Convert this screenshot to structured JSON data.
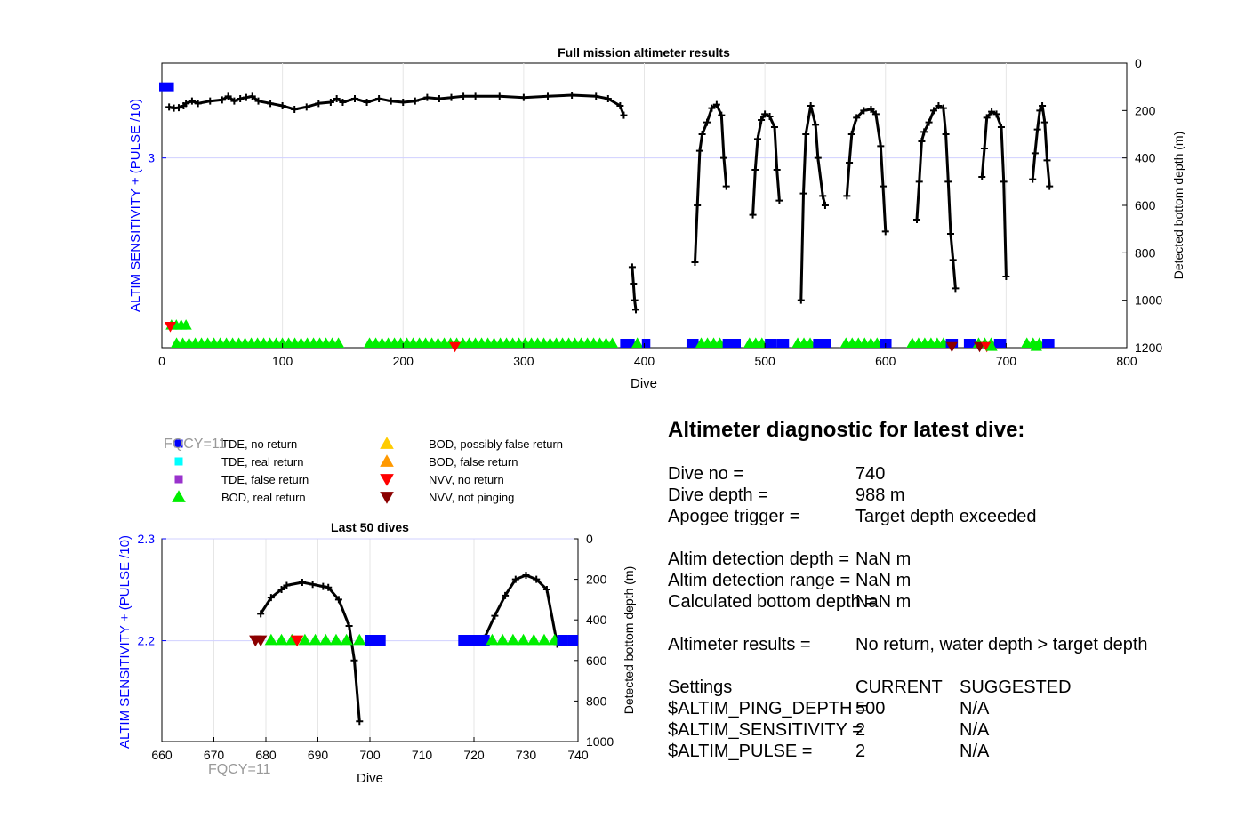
{
  "chart_data": [
    {
      "id": "full",
      "type": "line",
      "title": "Full mission altimeter results",
      "xlabel": "Dive",
      "ylabel_left": "ALTIM SENSITIVITY + (PULSE /10)",
      "ylabel_right": "Detected bottom depth (m)",
      "xlim": [
        0,
        800
      ],
      "xticks": [
        0,
        100,
        200,
        300,
        400,
        500,
        600,
        700,
        800
      ],
      "ylim_right": [
        1200,
        0
      ],
      "yticks_right": [
        0,
        200,
        400,
        600,
        800,
        1000,
        1200
      ],
      "yticks_left": [
        {
          "label": "3",
          "depth": 400
        }
      ],
      "grid": true,
      "settings_series": [
        {
          "name": "TDE, no return",
          "color": "#0000ff",
          "x_from": 0,
          "x_to": 10,
          "depth": 100
        }
      ],
      "event_bands": [
        {
          "from": 10,
          "to": 150,
          "color": "#00ee00"
        },
        {
          "from": 170,
          "to": 380,
          "color": "#00ee00"
        },
        {
          "from": 380,
          "to": 392,
          "color": "#0000ff"
        },
        {
          "from": 392,
          "to": 398,
          "color": "#00ee00"
        },
        {
          "from": 398,
          "to": 405,
          "color": "#0000ff"
        },
        {
          "from": 435,
          "to": 445,
          "color": "#0000ff"
        },
        {
          "from": 445,
          "to": 465,
          "color": "#00ee00"
        },
        {
          "from": 465,
          "to": 480,
          "color": "#0000ff"
        },
        {
          "from": 485,
          "to": 500,
          "color": "#00ee00"
        },
        {
          "from": 500,
          "to": 510,
          "color": "#0000ff"
        },
        {
          "from": 510,
          "to": 520,
          "color": "#0000ff"
        },
        {
          "from": 525,
          "to": 540,
          "color": "#00ee00"
        },
        {
          "from": 540,
          "to": 555,
          "color": "#0000ff"
        },
        {
          "from": 565,
          "to": 595,
          "color": "#00ee00"
        },
        {
          "from": 595,
          "to": 605,
          "color": "#0000ff"
        },
        {
          "from": 620,
          "to": 650,
          "color": "#00ee00"
        },
        {
          "from": 650,
          "to": 660,
          "color": "#0000ff"
        },
        {
          "from": 665,
          "to": 675,
          "color": "#0000ff"
        },
        {
          "from": 675,
          "to": 690,
          "color": "#00ee00"
        },
        {
          "from": 690,
          "to": 700,
          "color": "#0000ff"
        },
        {
          "from": 715,
          "to": 730,
          "color": "#00ee00"
        },
        {
          "from": 730,
          "to": 740,
          "color": "#0000ff"
        }
      ],
      "event_markers": [
        {
          "x": 8,
          "depth": 1105,
          "color": "#00ee00",
          "shape": "up"
        },
        {
          "x": 12,
          "depth": 1105,
          "color": "#00ee00",
          "shape": "up"
        },
        {
          "x": 16,
          "depth": 1105,
          "color": "#00ee00",
          "shape": "up"
        },
        {
          "x": 20,
          "depth": 1105,
          "color": "#00ee00",
          "shape": "up"
        },
        {
          "x": 7,
          "depth": 1110,
          "color": "#ff0000",
          "shape": "down"
        },
        {
          "x": 243,
          "depth": 1195,
          "color": "#ff0000",
          "shape": "down"
        },
        {
          "x": 655,
          "depth": 1195,
          "color": "#8b0000",
          "shape": "down"
        },
        {
          "x": 678,
          "depth": 1195,
          "color": "#8b0000",
          "shape": "down"
        },
        {
          "x": 684,
          "depth": 1195,
          "color": "#ff0000",
          "shape": "down"
        },
        {
          "x": 688,
          "depth": 1195,
          "color": "#00ee00",
          "shape": "up"
        },
        {
          "x": 725,
          "depth": 1195,
          "color": "#00ee00",
          "shape": "up"
        }
      ],
      "depth_series": [
        [
          [
            6,
            185
          ],
          [
            10,
            190
          ],
          [
            14,
            188
          ],
          [
            18,
            180
          ],
          [
            20,
            170
          ],
          [
            25,
            160
          ],
          [
            30,
            170
          ],
          [
            40,
            160
          ],
          [
            50,
            155
          ],
          [
            55,
            140
          ],
          [
            60,
            160
          ],
          [
            65,
            150
          ],
          [
            70,
            145
          ],
          [
            75,
            140
          ],
          [
            80,
            160
          ],
          [
            90,
            170
          ],
          [
            100,
            180
          ],
          [
            110,
            195
          ],
          [
            120,
            185
          ],
          [
            130,
            170
          ],
          [
            140,
            165
          ],
          [
            145,
            150
          ],
          [
            150,
            165
          ],
          [
            160,
            150
          ],
          [
            170,
            165
          ],
          [
            180,
            150
          ],
          [
            190,
            160
          ],
          [
            200,
            165
          ],
          [
            210,
            160
          ],
          [
            220,
            145
          ],
          [
            230,
            150
          ],
          [
            240,
            145
          ],
          [
            250,
            140
          ],
          [
            260,
            140
          ],
          [
            280,
            140
          ],
          [
            300,
            145
          ],
          [
            320,
            140
          ],
          [
            340,
            135
          ],
          [
            360,
            140
          ],
          [
            370,
            150
          ],
          [
            380,
            180
          ],
          [
            383,
            220
          ]
        ],
        [
          [
            390,
            860
          ],
          [
            391,
            930
          ],
          [
            392,
            1000
          ],
          [
            393,
            1040
          ]
        ],
        [
          [
            442,
            840
          ],
          [
            444,
            600
          ],
          [
            446,
            370
          ],
          [
            448,
            300
          ],
          [
            452,
            250
          ],
          [
            456,
            190
          ],
          [
            460,
            175
          ],
          [
            464,
            220
          ],
          [
            466,
            400
          ],
          [
            468,
            520
          ]
        ],
        [
          [
            490,
            640
          ],
          [
            492,
            450
          ],
          [
            494,
            320
          ],
          [
            497,
            240
          ],
          [
            500,
            215
          ],
          [
            504,
            225
          ],
          [
            508,
            270
          ],
          [
            510,
            450
          ],
          [
            512,
            580
          ]
        ],
        [
          [
            530,
            1000
          ],
          [
            532,
            550
          ],
          [
            534,
            300
          ],
          [
            538,
            180
          ],
          [
            542,
            260
          ],
          [
            544,
            400
          ],
          [
            548,
            560
          ],
          [
            550,
            600
          ]
        ],
        [
          [
            568,
            560
          ],
          [
            570,
            420
          ],
          [
            572,
            300
          ],
          [
            576,
            230
          ],
          [
            582,
            200
          ],
          [
            588,
            195
          ],
          [
            592,
            215
          ],
          [
            596,
            350
          ],
          [
            598,
            520
          ],
          [
            600,
            710
          ]
        ],
        [
          [
            626,
            660
          ],
          [
            628,
            500
          ],
          [
            630,
            330
          ],
          [
            632,
            290
          ],
          [
            636,
            250
          ],
          [
            640,
            200
          ],
          [
            644,
            180
          ],
          [
            648,
            190
          ],
          [
            650,
            300
          ],
          [
            652,
            500
          ],
          [
            654,
            720
          ],
          [
            656,
            830
          ],
          [
            658,
            950
          ]
        ],
        [
          [
            680,
            480
          ],
          [
            682,
            360
          ],
          [
            684,
            230
          ],
          [
            688,
            205
          ],
          [
            692,
            215
          ],
          [
            696,
            270
          ],
          [
            698,
            500
          ],
          [
            700,
            900
          ]
        ],
        [
          [
            722,
            490
          ],
          [
            724,
            380
          ],
          [
            726,
            280
          ],
          [
            728,
            200
          ],
          [
            730,
            180
          ],
          [
            732,
            250
          ],
          [
            734,
            410
          ],
          [
            736,
            520
          ]
        ]
      ]
    },
    {
      "id": "last50",
      "type": "line",
      "title": "Last 50 dives",
      "xlabel": "Dive",
      "ylabel_left": "ALTIM SENSITIVITY + (PULSE /10)",
      "ylabel_right": "Detected bottom depth (m)",
      "xlim": [
        660,
        740
      ],
      "xticks": [
        660,
        670,
        680,
        690,
        700,
        710,
        720,
        730,
        740
      ],
      "ylim_right": [
        1000,
        0
      ],
      "yticks_right": [
        0,
        200,
        400,
        600,
        800,
        1000
      ],
      "ylim_left": [
        2.101,
        2.3
      ],
      "yticks_left": [
        2.2,
        2.3
      ],
      "grid": true,
      "event_markers": [
        {
          "x": 678,
          "depth": 500,
          "color": "#8b0000",
          "shape": "down"
        },
        {
          "x": 679,
          "depth": 500,
          "color": "#8b0000",
          "shape": "down"
        },
        {
          "x": 681,
          "depth": 500,
          "color": "#00ee00",
          "shape": "up"
        },
        {
          "x": 683,
          "depth": 500,
          "color": "#00ee00",
          "shape": "up"
        },
        {
          "x": 685,
          "depth": 500,
          "color": "#00ee00",
          "shape": "up"
        },
        {
          "x": 686,
          "depth": 500,
          "color": "#ff0000",
          "shape": "down"
        },
        {
          "x": 687.5,
          "depth": 500,
          "color": "#00ee00",
          "shape": "up"
        },
        {
          "x": 689.5,
          "depth": 500,
          "color": "#00ee00",
          "shape": "up"
        },
        {
          "x": 691.5,
          "depth": 500,
          "color": "#00ee00",
          "shape": "up"
        },
        {
          "x": 693.5,
          "depth": 500,
          "color": "#00ee00",
          "shape": "up"
        },
        {
          "x": 695.5,
          "depth": 500,
          "color": "#00ee00",
          "shape": "up"
        },
        {
          "x": 698,
          "depth": 500,
          "color": "#00ee00",
          "shape": "up"
        },
        {
          "x": 700,
          "depth": 500,
          "color": "#0000ff",
          "shape": "square"
        },
        {
          "x": 701,
          "depth": 500,
          "color": "#0000ff",
          "shape": "square"
        },
        {
          "x": 702,
          "depth": 500,
          "color": "#0000ff",
          "shape": "square"
        },
        {
          "x": 718,
          "depth": 500,
          "color": "#0000ff",
          "shape": "square"
        },
        {
          "x": 719,
          "depth": 500,
          "color": "#0000ff",
          "shape": "square"
        },
        {
          "x": 720,
          "depth": 500,
          "color": "#0000ff",
          "shape": "square"
        },
        {
          "x": 721,
          "depth": 500,
          "color": "#0000ff",
          "shape": "square"
        },
        {
          "x": 722,
          "depth": 500,
          "color": "#0000ff",
          "shape": "square"
        },
        {
          "x": 723.5,
          "depth": 500,
          "color": "#00ee00",
          "shape": "up"
        },
        {
          "x": 725.5,
          "depth": 500,
          "color": "#00ee00",
          "shape": "up"
        },
        {
          "x": 727.5,
          "depth": 500,
          "color": "#00ee00",
          "shape": "up"
        },
        {
          "x": 729.5,
          "depth": 500,
          "color": "#00ee00",
          "shape": "up"
        },
        {
          "x": 731.5,
          "depth": 500,
          "color": "#00ee00",
          "shape": "up"
        },
        {
          "x": 733.5,
          "depth": 500,
          "color": "#00ee00",
          "shape": "up"
        },
        {
          "x": 735.5,
          "depth": 500,
          "color": "#00ee00",
          "shape": "up"
        },
        {
          "x": 737,
          "depth": 500,
          "color": "#0000ff",
          "shape": "square"
        },
        {
          "x": 739,
          "depth": 500,
          "color": "#0000ff",
          "shape": "square"
        }
      ],
      "depth_series": [
        [
          [
            679,
            370
          ],
          [
            681,
            290
          ],
          [
            683,
            250
          ],
          [
            684,
            230
          ],
          [
            687,
            215
          ],
          [
            689,
            225
          ],
          [
            691,
            235
          ],
          [
            692,
            240
          ],
          [
            694,
            300
          ],
          [
            696,
            430
          ],
          [
            697,
            600
          ],
          [
            698,
            900
          ]
        ],
        [
          [
            722,
            490
          ],
          [
            724,
            380
          ],
          [
            726,
            280
          ],
          [
            728,
            200
          ],
          [
            730,
            180
          ],
          [
            732,
            200
          ],
          [
            734,
            250
          ],
          [
            736,
            520
          ]
        ]
      ]
    }
  ],
  "legend": {
    "items": [
      {
        "label": "TDE, no return",
        "color": "#0000ff",
        "shape": "square"
      },
      {
        "label": "TDE, real return",
        "color": "#00ffff",
        "shape": "square"
      },
      {
        "label": "TDE, false return",
        "color": "#9932cc",
        "shape": "square"
      },
      {
        "label": "BOD, real return",
        "color": "#00ee00",
        "shape": "up"
      },
      {
        "label": "BOD, possibly false return",
        "color": "#ffcc00",
        "shape": "up"
      },
      {
        "label": "BOD, false return",
        "color": "#ff9900",
        "shape": "up"
      },
      {
        "label": "NVV, no return",
        "color": "#ff0000",
        "shape": "down"
      },
      {
        "label": "NVV, not pinging",
        "color": "#8b0000",
        "shape": "down"
      }
    ]
  },
  "fqcy_labels": [
    "FQCY=11",
    "FQCY=11"
  ],
  "diagnostic": {
    "title": "Altimeter diagnostic for latest dive:",
    "rows": [
      {
        "label": "Dive no =",
        "value": "740"
      },
      {
        "label": "Dive depth =",
        "value": "988 m"
      },
      {
        "label": "Apogee trigger =",
        "value": "Target depth exceeded"
      },
      {
        "label": "Altim detection depth =",
        "value": "NaN m"
      },
      {
        "label": "Altim detection range =",
        "value": "NaN m"
      },
      {
        "label": "Calculated bottom depth =",
        "value": "NaN m"
      },
      {
        "label": "Altimeter results =",
        "value": "No return, water depth > target depth"
      }
    ],
    "settings_header": {
      "label": "Settings",
      "current": "CURRENT",
      "suggested": "SUGGESTED"
    },
    "settings": [
      {
        "label": "$ALTIM_PING_DEPTH =",
        "current": "500",
        "suggested": "N/A"
      },
      {
        "label": "$ALTIM_SENSITIVITY =",
        "current": "2",
        "suggested": "N/A"
      },
      {
        "label": "$ALTIM_PULSE =",
        "current": "2",
        "suggested": "N/A"
      }
    ]
  }
}
